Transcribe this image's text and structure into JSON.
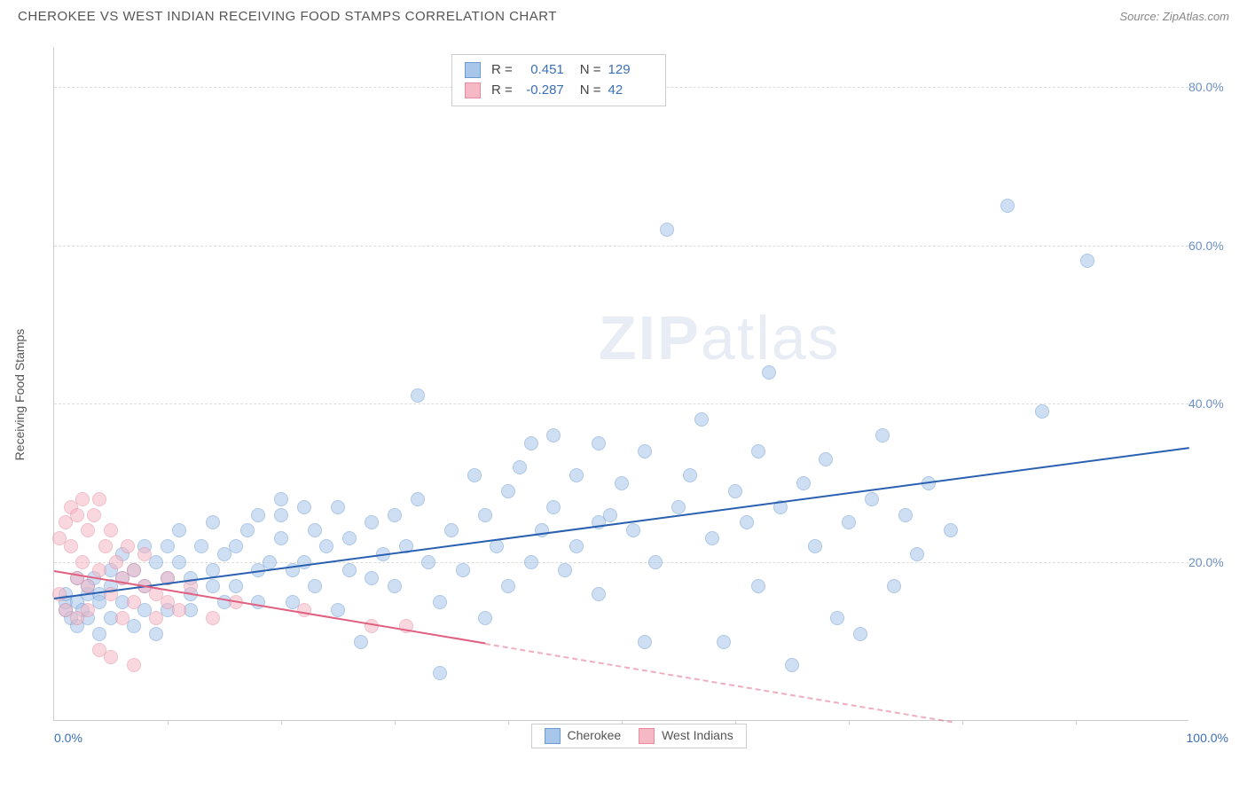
{
  "header": {
    "title": "CHEROKEE VS WEST INDIAN RECEIVING FOOD STAMPS CORRELATION CHART",
    "source": "Source: ZipAtlas.com"
  },
  "watermark": {
    "zip": "ZIP",
    "atlas": "atlas"
  },
  "chart": {
    "type": "scatter",
    "background_color": "#ffffff",
    "grid_color": "#dddddd",
    "axis_color": "#cccccc",
    "yaxis_title": "Receiving Food Stamps",
    "xlim": [
      0,
      100
    ],
    "ylim": [
      0,
      85
    ],
    "yticks": [
      {
        "v": 20,
        "label": "20.0%",
        "color": "#6b8fc9"
      },
      {
        "v": 40,
        "label": "40.0%",
        "color": "#6b8fc9"
      },
      {
        "v": 60,
        "label": "60.0%",
        "color": "#6b8fc9"
      },
      {
        "v": 80,
        "label": "80.0%",
        "color": "#6b8fc9"
      }
    ],
    "xticks": [
      {
        "v": 0,
        "label": "0.0%",
        "color": "#3b6fb6",
        "align": "left"
      },
      {
        "v": 100,
        "label": "100.0%",
        "color": "#3b6fb6",
        "align": "right"
      }
    ],
    "xminor_step": 10,
    "point_radius": 8,
    "point_opacity": 0.55,
    "point_stroke_width": 1,
    "series": [
      {
        "name": "Cherokee",
        "fill": "#a8c6ea",
        "stroke": "#6b9bd1",
        "trend_color": "#2a60b0",
        "trend_width": 2,
        "trend": {
          "x1": 0,
          "y1": 15.5,
          "x2": 100,
          "y2": 34.5,
          "dash_from_x": null
        },
        "stats": {
          "R": "0.451",
          "N": "129"
        },
        "points": [
          [
            1,
            14
          ],
          [
            1,
            15
          ],
          [
            1,
            16
          ],
          [
            1.5,
            13
          ],
          [
            2,
            15
          ],
          [
            2,
            18
          ],
          [
            2,
            12
          ],
          [
            2.5,
            14
          ],
          [
            3,
            16
          ],
          [
            3,
            17
          ],
          [
            3,
            13
          ],
          [
            3.5,
            18
          ],
          [
            4,
            16
          ],
          [
            4,
            11
          ],
          [
            4,
            15
          ],
          [
            5,
            19
          ],
          [
            5,
            17
          ],
          [
            5,
            13
          ],
          [
            6,
            18
          ],
          [
            6,
            21
          ],
          [
            6,
            15
          ],
          [
            7,
            19
          ],
          [
            7,
            12
          ],
          [
            8,
            22
          ],
          [
            8,
            17
          ],
          [
            8,
            14
          ],
          [
            9,
            11
          ],
          [
            9,
            20
          ],
          [
            10,
            22
          ],
          [
            10,
            18
          ],
          [
            10,
            14
          ],
          [
            11,
            20
          ],
          [
            11,
            24
          ],
          [
            12,
            18
          ],
          [
            12,
            16
          ],
          [
            12,
            14
          ],
          [
            13,
            22
          ],
          [
            14,
            17
          ],
          [
            14,
            25
          ],
          [
            14,
            19
          ],
          [
            15,
            21
          ],
          [
            15,
            15
          ],
          [
            16,
            22
          ],
          [
            16,
            17
          ],
          [
            17,
            24
          ],
          [
            18,
            19
          ],
          [
            18,
            15
          ],
          [
            18,
            26
          ],
          [
            19,
            20
          ],
          [
            20,
            23
          ],
          [
            20,
            26
          ],
          [
            20,
            28
          ],
          [
            21,
            19
          ],
          [
            21,
            15
          ],
          [
            22,
            27
          ],
          [
            22,
            20
          ],
          [
            23,
            24
          ],
          [
            23,
            17
          ],
          [
            24,
            22
          ],
          [
            25,
            14
          ],
          [
            25,
            27
          ],
          [
            26,
            19
          ],
          [
            26,
            23
          ],
          [
            27,
            10
          ],
          [
            28,
            25
          ],
          [
            28,
            18
          ],
          [
            29,
            21
          ],
          [
            30,
            26
          ],
          [
            30,
            17
          ],
          [
            31,
            22
          ],
          [
            32,
            28
          ],
          [
            32,
            41
          ],
          [
            33,
            20
          ],
          [
            34,
            15
          ],
          [
            34,
            6
          ],
          [
            35,
            24
          ],
          [
            36,
            19
          ],
          [
            37,
            31
          ],
          [
            38,
            13
          ],
          [
            38,
            26
          ],
          [
            39,
            22
          ],
          [
            40,
            17
          ],
          [
            40,
            29
          ],
          [
            41,
            32
          ],
          [
            42,
            20
          ],
          [
            42,
            35
          ],
          [
            43,
            24
          ],
          [
            44,
            27
          ],
          [
            44,
            36
          ],
          [
            45,
            19
          ],
          [
            46,
            31
          ],
          [
            46,
            22
          ],
          [
            48,
            35
          ],
          [
            48,
            16
          ],
          [
            49,
            26
          ],
          [
            50,
            30
          ],
          [
            51,
            24
          ],
          [
            52,
            34
          ],
          [
            52,
            10
          ],
          [
            53,
            20
          ],
          [
            54,
            62
          ],
          [
            55,
            27
          ],
          [
            56,
            31
          ],
          [
            57,
            38
          ],
          [
            58,
            23
          ],
          [
            59,
            10
          ],
          [
            60,
            29
          ],
          [
            61,
            25
          ],
          [
            62,
            34
          ],
          [
            62,
            17
          ],
          [
            63,
            44
          ],
          [
            64,
            27
          ],
          [
            65,
            7
          ],
          [
            66,
            30
          ],
          [
            67,
            22
          ],
          [
            68,
            33
          ],
          [
            69,
            13
          ],
          [
            70,
            25
          ],
          [
            71,
            11
          ],
          [
            72,
            28
          ],
          [
            73,
            36
          ],
          [
            74,
            17
          ],
          [
            75,
            26
          ],
          [
            76,
            21
          ],
          [
            77,
            30
          ],
          [
            79,
            24
          ],
          [
            84,
            65
          ],
          [
            87,
            39
          ],
          [
            91,
            58
          ],
          [
            48,
            25
          ]
        ]
      },
      {
        "name": "West Indians",
        "fill": "#f5b8c5",
        "stroke": "#e88aa0",
        "trend_color": "#e06080",
        "trend_width": 2,
        "trend": {
          "x1": 0,
          "y1": 19.0,
          "x2": 100,
          "y2": -5.0,
          "dash_from_x": 38
        },
        "stats": {
          "R": "-0.287",
          "N": "42"
        },
        "points": [
          [
            0.5,
            16
          ],
          [
            0.5,
            23
          ],
          [
            1,
            25
          ],
          [
            1,
            14
          ],
          [
            1.5,
            22
          ],
          [
            1.5,
            27
          ],
          [
            2,
            18
          ],
          [
            2,
            26
          ],
          [
            2,
            13
          ],
          [
            2.5,
            20
          ],
          [
            2.5,
            28
          ],
          [
            3,
            24
          ],
          [
            3,
            14
          ],
          [
            3,
            17
          ],
          [
            3.5,
            26
          ],
          [
            4,
            19
          ],
          [
            4,
            28
          ],
          [
            4,
            9
          ],
          [
            4.5,
            22
          ],
          [
            5,
            16
          ],
          [
            5,
            24
          ],
          [
            5,
            8
          ],
          [
            5.5,
            20
          ],
          [
            6,
            13
          ],
          [
            6,
            18
          ],
          [
            6.5,
            22
          ],
          [
            7,
            15
          ],
          [
            7,
            19
          ],
          [
            7,
            7
          ],
          [
            8,
            17
          ],
          [
            8,
            21
          ],
          [
            9,
            16
          ],
          [
            9,
            13
          ],
          [
            10,
            15
          ],
          [
            10,
            18
          ],
          [
            11,
            14
          ],
          [
            12,
            17
          ],
          [
            14,
            13
          ],
          [
            16,
            15
          ],
          [
            22,
            14
          ],
          [
            28,
            12
          ],
          [
            31,
            12
          ]
        ]
      }
    ],
    "legend_top": {
      "R_label": "R =",
      "N_label": "N ="
    },
    "legend_bottom": {
      "items": [
        "Cherokee",
        "West Indians"
      ]
    }
  }
}
